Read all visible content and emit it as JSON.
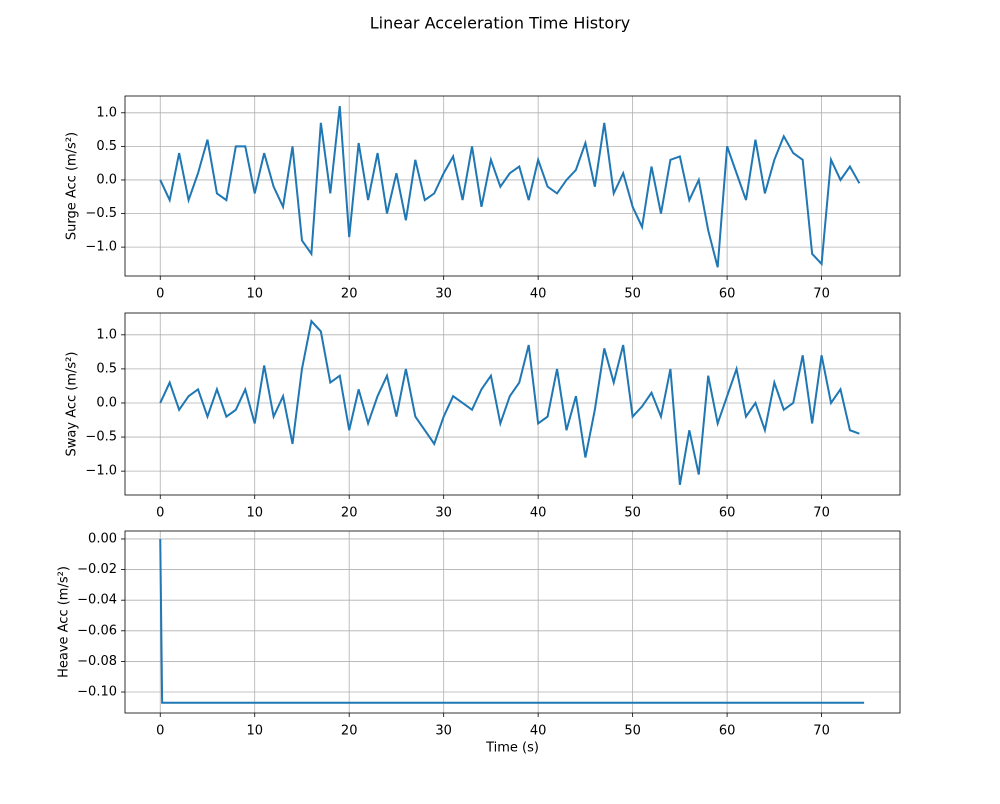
{
  "title": "Linear Acceleration Time History",
  "chart_data": [
    {
      "type": "line",
      "ylabel": "Surge Acc (m/s²)",
      "grid": true,
      "xlim": [
        -3.73,
        78.3
      ],
      "xticks": [
        0,
        10,
        20,
        30,
        40,
        50,
        60,
        70
      ],
      "ylim": [
        -1.43,
        1.25
      ],
      "yticks": [
        {
          "value": -1.0,
          "label": "−1.0"
        },
        {
          "value": -0.5,
          "label": "−0.5"
        },
        {
          "value": 0.0,
          "label": "0.0"
        },
        {
          "value": 0.5,
          "label": "0.5"
        },
        {
          "value": 1.0,
          "label": "1.0"
        }
      ],
      "x": [
        0,
        1,
        2,
        3,
        4,
        5,
        6,
        7,
        8,
        9,
        10,
        11,
        12,
        13,
        14,
        15,
        16,
        17,
        18,
        19,
        20,
        21,
        22,
        23,
        24,
        25,
        26,
        27,
        28,
        29,
        30,
        31,
        32,
        33,
        34,
        35,
        36,
        37,
        38,
        39,
        40,
        41,
        42,
        43,
        44,
        45,
        46,
        47,
        48,
        49,
        50,
        51,
        52,
        53,
        54,
        55,
        56,
        57,
        58,
        59,
        60,
        61,
        62,
        63,
        64,
        65,
        66,
        67,
        68,
        69,
        70,
        71,
        72,
        73,
        74
      ],
      "series": [
        {
          "color": "#1f77b4",
          "values": [
            0.0,
            -0.3,
            0.4,
            -0.3,
            0.1,
            0.6,
            -0.2,
            -0.3,
            0.5,
            0.5,
            -0.2,
            0.4,
            -0.1,
            -0.4,
            0.5,
            -0.9,
            -1.1,
            0.85,
            -0.2,
            1.1,
            -0.85,
            0.55,
            -0.3,
            0.4,
            -0.5,
            0.1,
            -0.6,
            0.3,
            -0.3,
            -0.2,
            0.1,
            0.35,
            -0.3,
            0.5,
            -0.4,
            0.3,
            -0.1,
            0.1,
            0.2,
            -0.3,
            0.3,
            -0.1,
            -0.2,
            0.0,
            0.15,
            0.55,
            -0.1,
            0.85,
            -0.2,
            0.1,
            -0.4,
            -0.7,
            0.2,
            -0.5,
            0.3,
            0.35,
            -0.3,
            0.0,
            -0.75,
            -1.3,
            0.5,
            0.1,
            -0.3,
            0.6,
            -0.2,
            0.3,
            0.65,
            0.4,
            0.3,
            -1.1,
            -1.25,
            0.3,
            0.0,
            0.2,
            -0.05
          ]
        }
      ]
    },
    {
      "type": "line",
      "ylabel": "Sway Acc (m/s²)",
      "grid": true,
      "xlim": [
        -3.73,
        78.3
      ],
      "xticks": [
        0,
        10,
        20,
        30,
        40,
        50,
        60,
        70
      ],
      "ylim": [
        -1.35,
        1.32
      ],
      "yticks": [
        {
          "value": -1.0,
          "label": "−1.0"
        },
        {
          "value": -0.5,
          "label": "−0.5"
        },
        {
          "value": 0.0,
          "label": "0.0"
        },
        {
          "value": 0.5,
          "label": "0.5"
        },
        {
          "value": 1.0,
          "label": "1.0"
        }
      ],
      "x": [
        0,
        1,
        2,
        3,
        4,
        5,
        6,
        7,
        8,
        9,
        10,
        11,
        12,
        13,
        14,
        15,
        16,
        17,
        18,
        19,
        20,
        21,
        22,
        23,
        24,
        25,
        26,
        27,
        28,
        29,
        30,
        31,
        32,
        33,
        34,
        35,
        36,
        37,
        38,
        39,
        40,
        41,
        42,
        43,
        44,
        45,
        46,
        47,
        48,
        49,
        50,
        51,
        52,
        53,
        54,
        55,
        56,
        57,
        58,
        59,
        60,
        61,
        62,
        63,
        64,
        65,
        66,
        67,
        68,
        69,
        70,
        71,
        72,
        73,
        74
      ],
      "series": [
        {
          "color": "#1f77b4",
          "values": [
            0.0,
            0.3,
            -0.1,
            0.1,
            0.2,
            -0.2,
            0.2,
            -0.2,
            -0.1,
            0.2,
            -0.3,
            0.55,
            -0.2,
            0.1,
            -0.6,
            0.5,
            1.2,
            1.05,
            0.3,
            0.4,
            -0.4,
            0.2,
            -0.3,
            0.1,
            0.4,
            -0.2,
            0.5,
            -0.2,
            -0.4,
            -0.6,
            -0.2,
            0.1,
            0.0,
            -0.1,
            0.2,
            0.4,
            -0.3,
            0.1,
            0.3,
            0.85,
            -0.3,
            -0.2,
            0.5,
            -0.4,
            0.1,
            -0.8,
            -0.1,
            0.8,
            0.3,
            0.85,
            -0.2,
            -0.05,
            0.15,
            -0.2,
            0.5,
            -1.2,
            -0.4,
            -1.05,
            0.4,
            -0.3,
            0.1,
            0.5,
            -0.2,
            0.0,
            -0.4,
            0.3,
            -0.1,
            0.0,
            0.7,
            -0.3,
            0.7,
            0.0,
            0.2,
            -0.4,
            -0.45
          ]
        }
      ]
    },
    {
      "type": "line",
      "ylabel": "Heave Acc (m/s²)",
      "xlabel": "Time (s)",
      "grid": true,
      "xlim": [
        -3.73,
        78.3
      ],
      "xticks": [
        0,
        10,
        20,
        30,
        40,
        50,
        60,
        70
      ],
      "ylim": [
        -0.1137,
        0.0052
      ],
      "yticks": [
        {
          "value": -0.1,
          "label": "−0.10"
        },
        {
          "value": -0.08,
          "label": "−0.08"
        },
        {
          "value": -0.06,
          "label": "−0.06"
        },
        {
          "value": -0.04,
          "label": "−0.04"
        },
        {
          "value": -0.02,
          "label": "−0.02"
        },
        {
          "value": 0.0,
          "label": "0.00"
        }
      ],
      "x": [
        0,
        0.2,
        74.5
      ],
      "series": [
        {
          "color": "#1f77b4",
          "values": [
            0.0,
            -0.107,
            -0.107
          ]
        }
      ]
    }
  ]
}
